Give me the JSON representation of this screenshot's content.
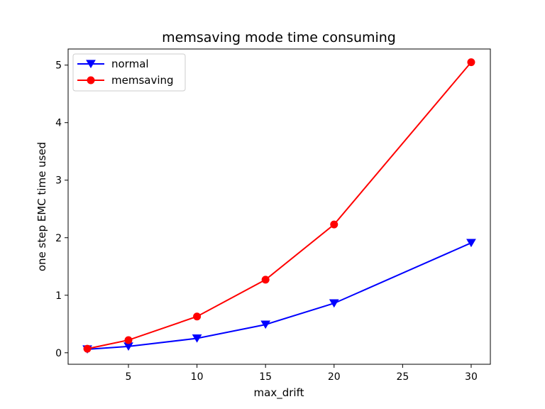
{
  "chart_data": {
    "type": "line",
    "title": "memsaving mode time consuming",
    "xlabel": "max_drift",
    "ylabel": "one step EMC time used",
    "x": [
      2,
      5,
      10,
      15,
      20,
      30
    ],
    "xlim": [
      0.6,
      31.4
    ],
    "ylim": [
      -0.2,
      5.28
    ],
    "xticks": [
      5,
      10,
      15,
      20,
      25,
      30
    ],
    "yticks": [
      0,
      1,
      2,
      3,
      4,
      5
    ],
    "grid": false,
    "legend_position": "upper-left",
    "series": [
      {
        "name": "normal",
        "color": "#0000ff",
        "marker": "triangle-down",
        "values": [
          0.06,
          0.11,
          0.25,
          0.49,
          0.86,
          1.91
        ]
      },
      {
        "name": "memsaving",
        "color": "#ff0000",
        "marker": "circle",
        "values": [
          0.07,
          0.22,
          0.63,
          1.27,
          2.23,
          5.05
        ]
      }
    ]
  }
}
